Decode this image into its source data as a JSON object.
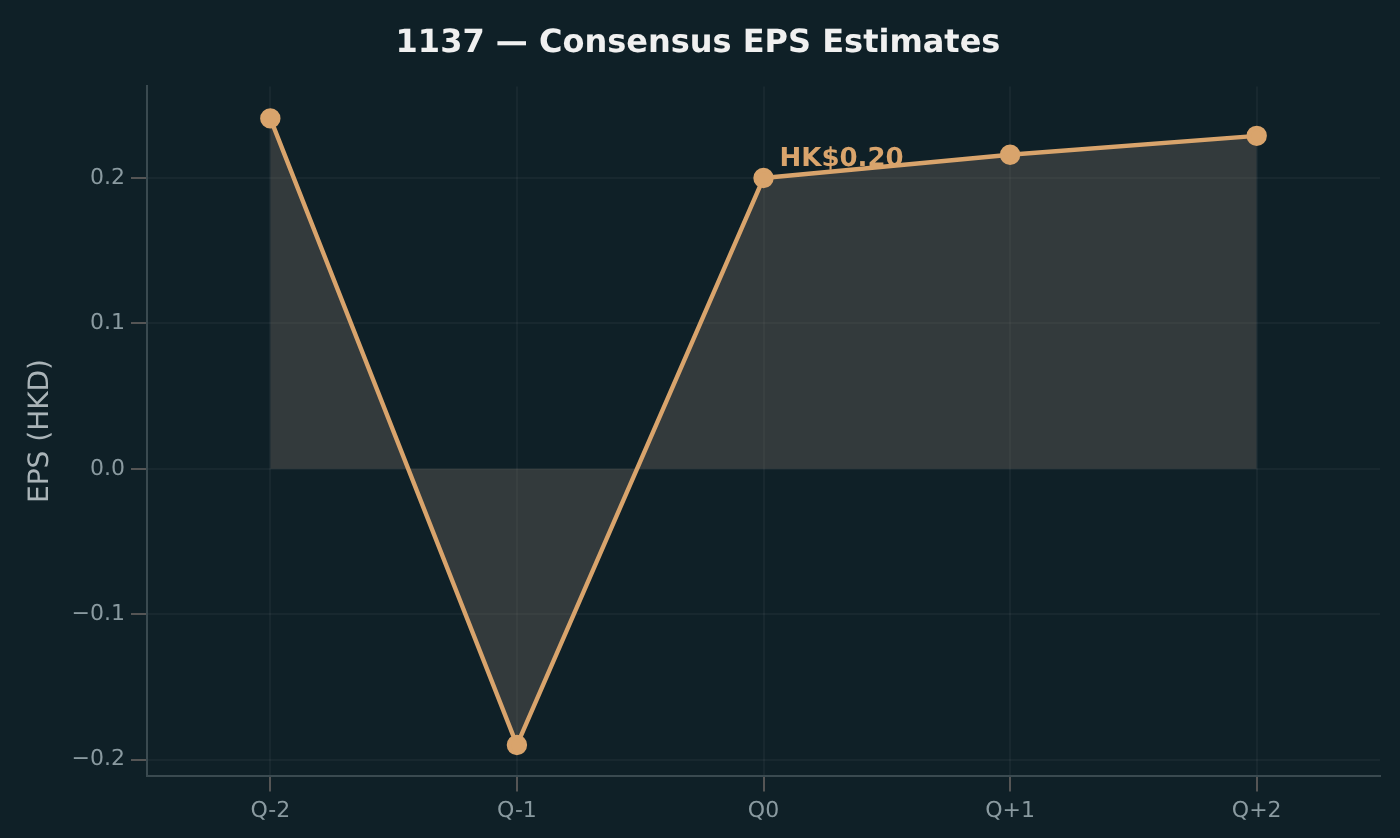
{
  "chart_data": {
    "type": "area",
    "title": "1137 — Consensus EPS Estimates",
    "ylabel": "EPS (HKD)",
    "categories": [
      "Q-2",
      "Q-1",
      "Q0",
      "Q+1",
      "Q+2"
    ],
    "series": [
      {
        "color": "#d9a46c",
        "values": [
          0.241,
          -0.19,
          0.2,
          0.216,
          0.229
        ]
      }
    ],
    "ylim": [
      -0.211,
      0.263
    ],
    "yticks": [
      {
        "value": -0.2,
        "label": "−0.2"
      },
      {
        "value": -0.1,
        "label": "−0.1"
      },
      {
        "value": 0,
        "label": "0.0"
      },
      {
        "value": 0.1,
        "label": "0.1"
      },
      {
        "value": 0.2,
        "label": "0.2"
      }
    ],
    "grid": true,
    "legend": false,
    "marker": "circle",
    "line_style": "solid",
    "annotations": [
      {
        "text": "HK$0.20",
        "x": "Q0",
        "y": 0.2
      }
    ]
  }
}
